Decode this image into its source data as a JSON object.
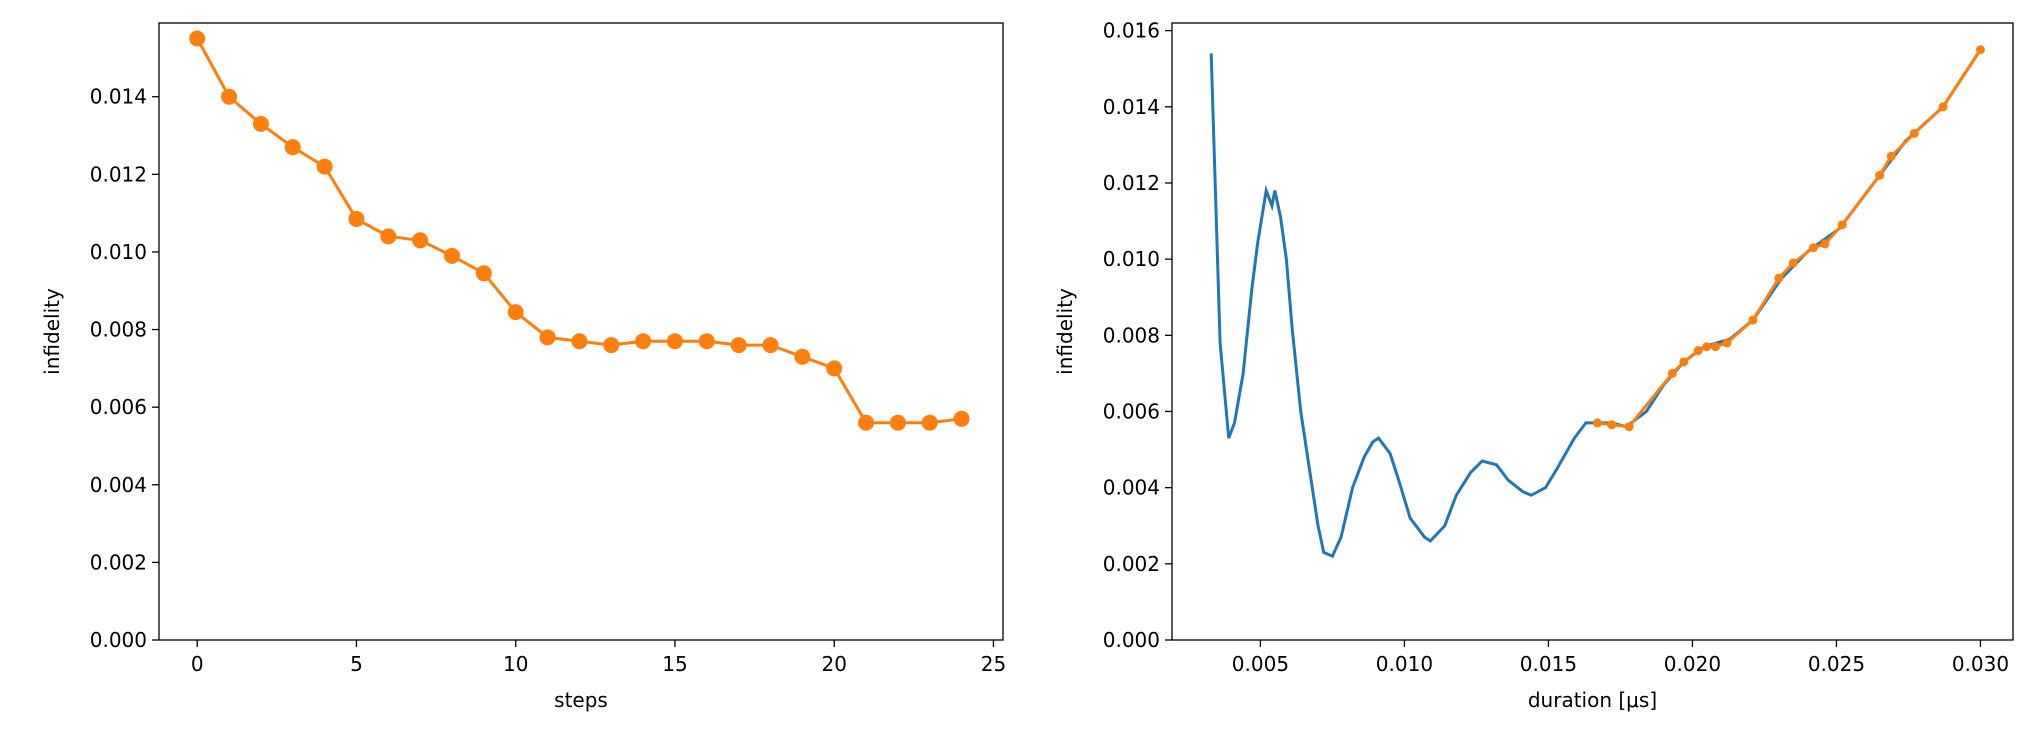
{
  "chart_data": [
    {
      "type": "line",
      "xlabel": "steps",
      "ylabel": "infidelity",
      "xlim": [
        -1.2,
        25.3
      ],
      "ylim": [
        0,
        0.0159
      ],
      "xticks": [
        0,
        5,
        10,
        15,
        20,
        25
      ],
      "yticks": [
        {
          "value": 0,
          "label": "0.000"
        },
        {
          "value": 0.002,
          "label": "0.002"
        },
        {
          "value": 0.004,
          "label": "0.004"
        },
        {
          "value": 0.006,
          "label": "0.006"
        },
        {
          "value": 0.008,
          "label": "0.008"
        },
        {
          "value": 0.01,
          "label": "0.010"
        },
        {
          "value": 0.012,
          "label": "0.012"
        },
        {
          "value": 0.014,
          "label": "0.014"
        }
      ],
      "series": [
        {
          "color": "#ff7f0e",
          "markers": true,
          "x": [
            0,
            1,
            2,
            3,
            4,
            5,
            6,
            7,
            8,
            9,
            10,
            11,
            12,
            13,
            14,
            15,
            16,
            17,
            18,
            19,
            20,
            21,
            22,
            23,
            24
          ],
          "values": [
            0.0155,
            0.014,
            0.0133,
            0.0127,
            0.0122,
            0.01085,
            0.0104,
            0.0103,
            0.0099,
            0.00945,
            0.00845,
            0.0078,
            0.0077,
            0.0076,
            0.0077,
            0.0077,
            0.0077,
            0.0076,
            0.0076,
            0.0073,
            0.007,
            0.0056,
            0.0056,
            0.0056,
            0.0057
          ]
        }
      ]
    },
    {
      "type": "line",
      "xlabel": "duration [μs]",
      "ylabel": "infidelity",
      "xlim": [
        0.00193,
        0.03113
      ],
      "ylim": [
        0,
        0.0162
      ],
      "xticks": [
        0.005,
        {
          "value": 0.01,
          "label": "0.010"
        },
        0.015,
        {
          "value": 0.02,
          "label": "0.020"
        },
        0.025,
        {
          "value": 0.03,
          "label": "0.030"
        }
      ],
      "yticks": [
        {
          "value": 0,
          "label": "0.000"
        },
        {
          "value": 0.002,
          "label": "0.002"
        },
        {
          "value": 0.004,
          "label": "0.004"
        },
        {
          "value": 0.006,
          "label": "0.006"
        },
        {
          "value": 0.008,
          "label": "0.008"
        },
        {
          "value": 0.01,
          "label": "0.010"
        },
        {
          "value": 0.012,
          "label": "0.012"
        },
        {
          "value": 0.014,
          "label": "0.014"
        },
        {
          "value": 0.016,
          "label": "0.016"
        }
      ],
      "series": [
        {
          "color": "#1f77b4",
          "markers": false,
          "x": [
            0.00329,
            0.0036,
            0.0039,
            0.0041,
            0.0044,
            0.0047,
            0.0049,
            0.0052,
            0.0054,
            0.0055,
            0.0057,
            0.0059,
            0.0061,
            0.0064,
            0.0067,
            0.007,
            0.0072,
            0.0075,
            0.0078,
            0.0082,
            0.0086,
            0.0089,
            0.0091,
            0.0095,
            0.0098,
            0.0102,
            0.0107,
            0.0109,
            0.0114,
            0.0118,
            0.0123,
            0.0127,
            0.0132,
            0.0136,
            0.0141,
            0.0144,
            0.0149,
            0.0153,
            0.0159,
            0.0163,
            0.0172,
            0.0177,
            0.0184,
            0.019,
            0.0197,
            0.0204,
            0.0213,
            0.0221,
            0.0231,
            0.024,
            0.0251,
            0.0263,
            0.0274,
            0.0287,
            0.03
          ],
          "values": [
            0.0154,
            0.0078,
            0.0053,
            0.0057,
            0.007,
            0.0092,
            0.0104,
            0.0118,
            0.0114,
            0.0118,
            0.0111,
            0.01,
            0.0082,
            0.006,
            0.0045,
            0.003,
            0.0023,
            0.0022,
            0.0027,
            0.004,
            0.0048,
            0.0052,
            0.0053,
            0.0049,
            0.0042,
            0.0032,
            0.0027,
            0.0026,
            0.003,
            0.0038,
            0.0044,
            0.0047,
            0.0046,
            0.0042,
            0.0039,
            0.0038,
            0.004,
            0.0045,
            0.0053,
            0.0057,
            0.0057,
            0.0056,
            0.006,
            0.0067,
            0.0073,
            0.0077,
            0.0079,
            0.0084,
            0.0095,
            0.0102,
            0.0108,
            0.012,
            0.0131,
            0.014,
            0.0155
          ]
        },
        {
          "color": "#ff7f0e",
          "markers": true,
          "x": [
            0.0167,
            0.0172,
            0.0178,
            0.0193,
            0.0197,
            0.0202,
            0.0205,
            0.0208,
            0.0212,
            0.0221,
            0.023,
            0.0235,
            0.0242,
            0.0246,
            0.0252,
            0.0265,
            0.0269,
            0.0277,
            0.0287,
            0.03
          ],
          "values": [
            0.0057,
            0.00565,
            0.0056,
            0.007,
            0.0073,
            0.0076,
            0.0077,
            0.0077,
            0.0078,
            0.0084,
            0.0095,
            0.0099,
            0.0103,
            0.0104,
            0.0109,
            0.0122,
            0.0127,
            0.0133,
            0.014,
            0.0155
          ]
        }
      ]
    }
  ]
}
